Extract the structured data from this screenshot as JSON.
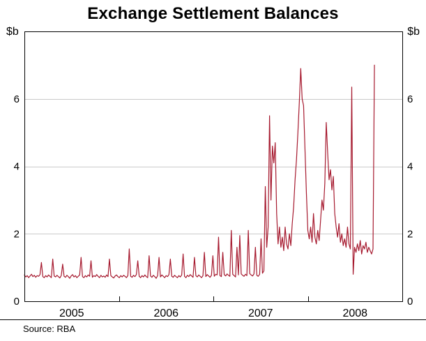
{
  "title": "Exchange Settlement Balances",
  "unit_label_left": "$b",
  "unit_label_right": "$b",
  "source": "Source: RBA",
  "colors": {
    "line": "#a6192e",
    "grid": "#c9c9c9",
    "axis": "#000000",
    "background": "#ffffff"
  },
  "chart_data": {
    "type": "line",
    "title": "Exchange Settlement Balances",
    "ylabel": "$b",
    "ylim": [
      0,
      8
    ],
    "yticks": [
      0,
      2,
      4,
      6
    ],
    "gridlines": [
      2,
      4,
      6
    ],
    "xlim": [
      2005,
      2009
    ],
    "xtick_marks": [
      2006,
      2007,
      2008
    ],
    "xtick_labels": [
      {
        "label": "2005",
        "x": 2005.5
      },
      {
        "label": "2006",
        "x": 2006.5
      },
      {
        "label": "2007",
        "x": 2007.5
      },
      {
        "label": "2008",
        "x": 2008.5
      }
    ],
    "legend": "none",
    "series": [
      {
        "name": "Exchange settlement balances ($b, daily)",
        "x0": 2005.0,
        "dx": 0.015,
        "values": [
          0.78,
          0.72,
          0.76,
          0.7,
          0.75,
          0.8,
          0.73,
          0.77,
          0.71,
          0.76,
          0.74,
          0.79,
          1.15,
          0.73,
          0.7,
          0.76,
          0.72,
          0.78,
          0.74,
          0.7,
          1.25,
          0.75,
          0.72,
          0.77,
          0.73,
          0.69,
          0.76,
          1.1,
          0.74,
          0.71,
          0.77,
          0.73,
          0.68,
          0.75,
          0.79,
          0.72,
          0.76,
          0.7,
          0.74,
          0.78,
          1.3,
          0.73,
          0.7,
          0.76,
          0.72,
          0.78,
          0.74,
          1.2,
          0.71,
          0.76,
          0.73,
          0.79,
          0.74,
          0.7,
          0.77,
          0.72,
          0.75,
          0.71,
          0.78,
          0.73,
          1.25,
          0.76,
          0.72,
          0.69,
          0.75,
          0.78,
          0.73,
          0.7,
          0.76,
          0.72,
          0.77,
          0.74,
          0.7,
          0.76,
          1.55,
          0.74,
          0.71,
          0.77,
          0.73,
          0.79,
          1.2,
          0.74,
          0.7,
          0.76,
          0.72,
          0.78,
          0.73,
          0.7,
          1.35,
          0.75,
          0.71,
          0.77,
          0.73,
          0.68,
          0.76,
          1.3,
          0.72,
          0.78,
          0.74,
          0.7,
          0.76,
          0.73,
          0.79,
          1.25,
          0.74,
          0.71,
          0.77,
          0.73,
          0.7,
          0.76,
          0.72,
          0.78,
          1.4,
          0.74,
          0.7,
          0.77,
          0.73,
          0.79,
          0.75,
          0.71,
          1.3,
          0.76,
          0.72,
          0.78,
          0.74,
          0.7,
          0.76,
          1.45,
          0.73,
          0.79,
          0.75,
          0.71,
          0.77,
          1.35,
          0.74,
          0.8,
          0.78,
          1.9,
          0.76,
          0.73,
          1.45,
          0.79,
          0.75,
          0.81,
          0.77,
          0.74,
          2.1,
          0.8,
          0.76,
          0.72,
          1.6,
          0.78,
          1.95,
          0.81,
          0.77,
          0.74,
          0.8,
          0.76,
          2.1,
          0.82,
          0.78,
          0.75,
          0.81,
          1.6,
          0.77,
          0.74,
          0.8,
          1.85,
          0.83,
          0.9,
          3.4,
          1.6,
          2.2,
          5.5,
          3.0,
          4.6,
          4.1,
          4.7,
          2.6,
          1.7,
          2.2,
          1.6,
          1.9,
          1.5,
          2.2,
          1.7,
          1.55,
          2.0,
          1.65,
          2.3,
          2.8,
          3.6,
          4.2,
          5.0,
          5.9,
          6.9,
          6.0,
          5.8,
          4.5,
          3.2,
          2.1,
          1.85,
          2.2,
          1.75,
          2.6,
          1.9,
          1.7,
          2.1,
          1.8,
          2.4,
          3.0,
          2.7,
          3.5,
          5.3,
          4.4,
          3.6,
          3.9,
          3.3,
          3.7,
          2.6,
          2.2,
          1.9,
          2.3,
          1.75,
          2.0,
          1.65,
          1.85,
          1.6,
          2.2,
          1.7,
          1.55,
          6.35,
          0.8,
          1.6,
          1.45,
          1.7,
          1.5,
          1.8,
          1.4,
          1.65,
          1.55,
          1.75,
          1.45,
          1.6,
          1.5,
          1.4,
          1.55,
          7.0
        ]
      }
    ]
  }
}
